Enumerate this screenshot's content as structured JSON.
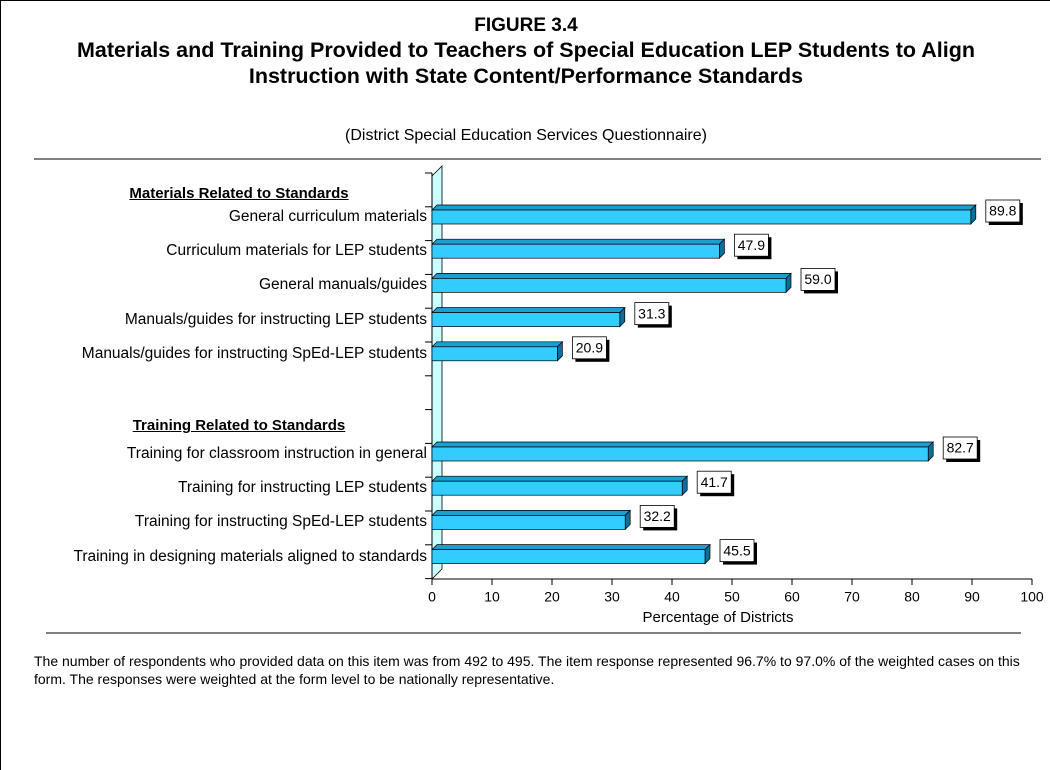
{
  "chart_data": {
    "type": "bar",
    "orientation": "horizontal",
    "figure_label": "FIGURE 3.4",
    "title": "Materials and Training Provided to Teachers of Special Education LEP Students to Align Instruction with State Content/Performance Standards",
    "subtitle": "(District Special Education Services Questionnaire)",
    "xlabel": "Percentage of Districts",
    "xlim": [
      0,
      100
    ],
    "xticks": [
      0,
      10,
      20,
      30,
      40,
      50,
      60,
      70,
      80,
      90,
      100
    ],
    "color": "#33ccff",
    "groups": [
      {
        "name": "Materials Related to Standards",
        "categories": [
          "General curriculum materials",
          "Curriculum materials for LEP students",
          "General manuals/guides",
          "Manuals/guides for instructing LEP students",
          "Manuals/guides for instructing SpEd-LEP students"
        ],
        "values": [
          89.8,
          47.9,
          59,
          31.3,
          20.9
        ],
        "value_labels": [
          "89.8",
          "47.9",
          "59.0",
          "31.3",
          "20.9"
        ]
      },
      {
        "name": "Training Related to Standards",
        "categories": [
          "Training for classroom instruction in general",
          "Training for instructing LEP students",
          "Training for instructing SpEd-LEP students",
          "Training in designing materials aligned to standards"
        ],
        "values": [
          82.7,
          41.7,
          32.2,
          45.5
        ],
        "value_labels": [
          "82.7",
          "41.7",
          "32.2",
          "45.5"
        ]
      }
    ],
    "note": "The number of respondents who provided data on this item was from 492 to 495.  The item response represented 96.7% to 97.0% of the weighted cases on this form.  The responses were weighted at the form level to be nationally representative."
  }
}
